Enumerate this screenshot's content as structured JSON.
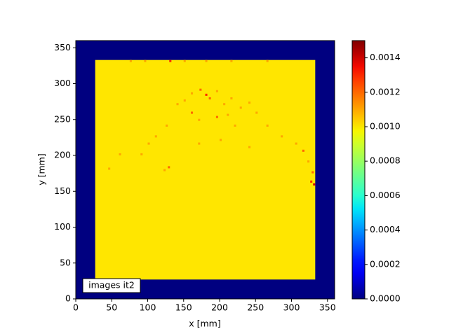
{
  "chart_data": {
    "type": "heatmap",
    "xlabel": "x [mm]",
    "ylabel": "y [mm]",
    "annotation": "images it2",
    "xlim": [
      0,
      360
    ],
    "ylim": [
      0,
      360
    ],
    "xticks": [
      0,
      50,
      100,
      150,
      200,
      250,
      300,
      350
    ],
    "yticks": [
      0,
      50,
      100,
      150,
      200,
      250,
      300,
      350
    ],
    "colormap": "jet",
    "clim": [
      0,
      0.0015
    ],
    "cticks": [
      {
        "value": 0,
        "label": "0.0000"
      },
      {
        "value": 0.0002,
        "label": "0.0002"
      },
      {
        "value": 0.0004,
        "label": "0.0004"
      },
      {
        "value": 0.0006,
        "label": "0.0006"
      },
      {
        "value": 0.0008,
        "label": "0.0008"
      },
      {
        "value": 0.001,
        "label": "0.0010"
      },
      {
        "value": 0.0012,
        "label": "0.0012"
      },
      {
        "value": 0.0014,
        "label": "0.0014"
      }
    ],
    "regions": [
      {
        "x": [
          0,
          360
        ],
        "y": [
          0,
          360
        ],
        "value": 0
      },
      {
        "x": [
          27,
          333
        ],
        "y": [
          27,
          333
        ],
        "value": 0.001
      }
    ],
    "cell_size": 3,
    "cells": [
      {
        "x": 160,
        "y": 285,
        "value": 0.0011
      },
      {
        "x": 172,
        "y": 290,
        "value": 0.0012
      },
      {
        "x": 180,
        "y": 283,
        "value": 0.0013
      },
      {
        "x": 185,
        "y": 278,
        "value": 0.0012
      },
      {
        "x": 195,
        "y": 288,
        "value": 0.0011
      },
      {
        "x": 150,
        "y": 275,
        "value": 0.0011
      },
      {
        "x": 140,
        "y": 270,
        "value": 0.0011
      },
      {
        "x": 205,
        "y": 270,
        "value": 0.0011
      },
      {
        "x": 215,
        "y": 278,
        "value": 0.0011
      },
      {
        "x": 228,
        "y": 265,
        "value": 0.0011
      },
      {
        "x": 240,
        "y": 272,
        "value": 0.0011
      },
      {
        "x": 250,
        "y": 258,
        "value": 0.0011
      },
      {
        "x": 160,
        "y": 258,
        "value": 0.0012
      },
      {
        "x": 170,
        "y": 248,
        "value": 0.0011
      },
      {
        "x": 195,
        "y": 252,
        "value": 0.0012
      },
      {
        "x": 210,
        "y": 255,
        "value": 0.0011
      },
      {
        "x": 220,
        "y": 240,
        "value": 0.0011
      },
      {
        "x": 125,
        "y": 240,
        "value": 0.0011
      },
      {
        "x": 110,
        "y": 225,
        "value": 0.0011
      },
      {
        "x": 100,
        "y": 215,
        "value": 0.0011
      },
      {
        "x": 128,
        "y": 182,
        "value": 0.0012
      },
      {
        "x": 122,
        "y": 178,
        "value": 0.0011
      },
      {
        "x": 90,
        "y": 200,
        "value": 0.0011
      },
      {
        "x": 60,
        "y": 200,
        "value": 0.0011
      },
      {
        "x": 45,
        "y": 180,
        "value": 0.0011
      },
      {
        "x": 265,
        "y": 240,
        "value": 0.0011
      },
      {
        "x": 285,
        "y": 225,
        "value": 0.0011
      },
      {
        "x": 305,
        "y": 215,
        "value": 0.0011
      },
      {
        "x": 315,
        "y": 205,
        "value": 0.0012
      },
      {
        "x": 322,
        "y": 190,
        "value": 0.0011
      },
      {
        "x": 328,
        "y": 175,
        "value": 0.0012
      },
      {
        "x": 330,
        "y": 158,
        "value": 0.0014
      },
      {
        "x": 326,
        "y": 162,
        "value": 0.0013
      },
      {
        "x": 240,
        "y": 210,
        "value": 0.0011
      },
      {
        "x": 170,
        "y": 215,
        "value": 0.0011
      },
      {
        "x": 200,
        "y": 220,
        "value": 0.0011
      },
      {
        "x": 75,
        "y": 330,
        "value": 0.0011
      },
      {
        "x": 95,
        "y": 330,
        "value": 0.0011
      },
      {
        "x": 130,
        "y": 330,
        "value": 0.0013
      },
      {
        "x": 150,
        "y": 330,
        "value": 0.0011
      },
      {
        "x": 180,
        "y": 330,
        "value": 0.0011
      },
      {
        "x": 215,
        "y": 330,
        "value": 0.0011
      },
      {
        "x": 265,
        "y": 330,
        "value": 0.0011
      }
    ]
  }
}
